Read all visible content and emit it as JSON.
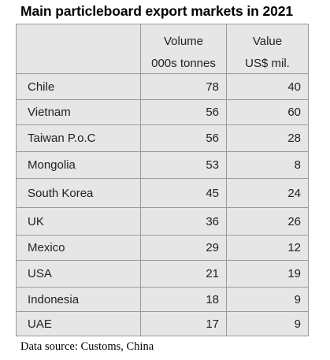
{
  "chart_data": {
    "type": "table",
    "title": "Main particleboard export markets in 2021",
    "columns": [
      {
        "name": "Volume",
        "unit": "000s tonnes"
      },
      {
        "name": "Value",
        "unit": "US$ mil."
      }
    ],
    "rows": [
      {
        "market": "Chile",
        "volume": 78,
        "value": 40
      },
      {
        "market": "Vietnam",
        "volume": 56,
        "value": 60
      },
      {
        "market": "Taiwan P.o.C",
        "volume": 56,
        "value": 28
      },
      {
        "market": "Mongolia",
        "volume": 53,
        "value": 8
      },
      {
        "market": "South Korea",
        "volume": 45,
        "value": 24
      },
      {
        "market": "UK",
        "volume": 36,
        "value": 26
      },
      {
        "market": "Mexico",
        "volume": 29,
        "value": 12
      },
      {
        "market": "USA",
        "volume": 21,
        "value": 19
      },
      {
        "market": "Indonesia",
        "volume": 18,
        "value": 9
      },
      {
        "market": "UAE",
        "volume": 17,
        "value": 9
      }
    ],
    "source": "Data source: Customs, China"
  }
}
